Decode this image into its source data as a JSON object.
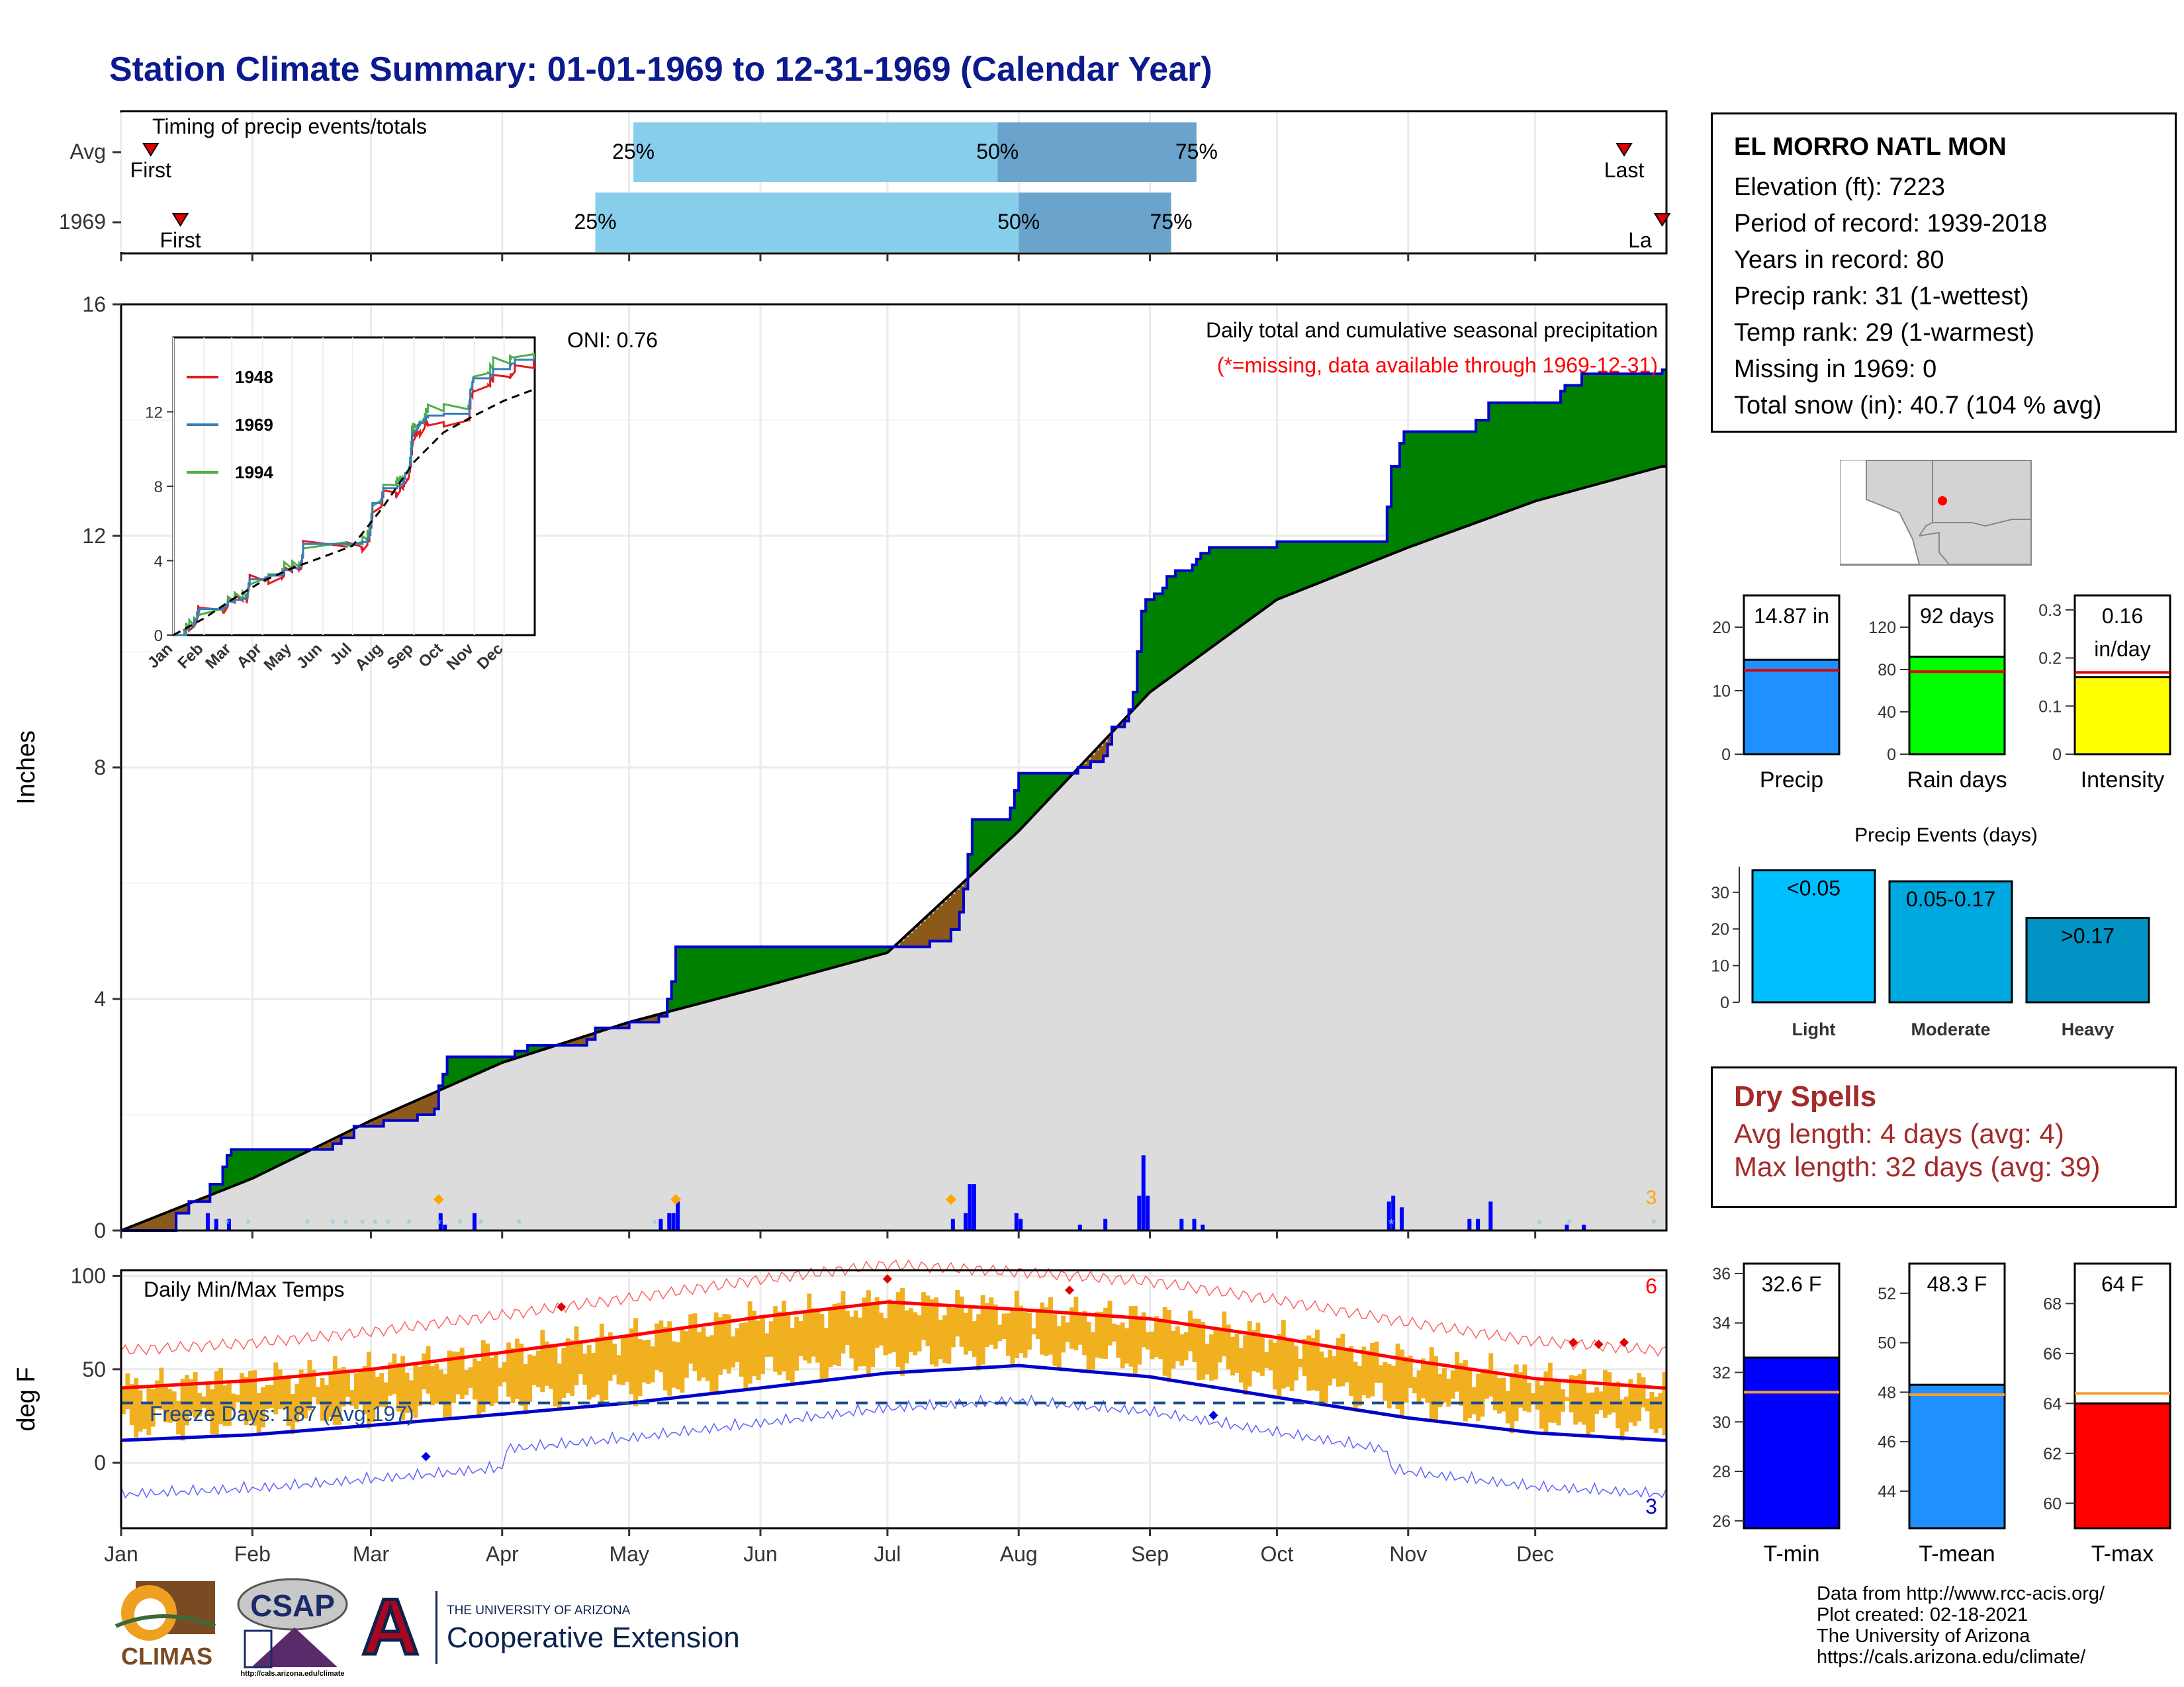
{
  "title": "Station Climate Summary: 01-01-1969 to 12-31-1969 (Calendar Year)",
  "station": {
    "name": "EL MORRO NATL MON",
    "lines": [
      "Elevation (ft): 7223",
      "Period of record: 1939-2018",
      "Years in record: 80",
      "Precip rank: 31 (1-wettest)",
      "Temp rank: 29 (1-warmest)",
      "Missing in 1969: 0",
      "Total snow (in): 40.7 (104 % avg)"
    ]
  },
  "dry_spells": {
    "title": "Dry Spells",
    "avg": "Avg length: 4 days (avg: 4)",
    "max": "Max length: 32 days (avg: 39)"
  },
  "credits": [
    "Data from http://www.rcc-acis.org/",
    "Plot created: 02-18-2021",
    "The University of Arizona",
    "https://cals.arizona.edu/climate/"
  ],
  "logos": {
    "climas": "CLIMAS",
    "csap": "CSAP",
    "csap_url": "http://cals.arizona.edu/climate",
    "ua_line1": "THE UNIVERSITY OF ARIZONA",
    "ua_line2": "Cooperative Extension",
    "ua_letter": "A"
  },
  "colors": {
    "obs_precip": "#008000",
    "deficit": "#8b5a1a",
    "normal": "#dcdcdc",
    "cum_line": "#0000cd",
    "bars": "#0000ff",
    "tmax": "#ff0000",
    "tmin": "#0000cd",
    "temp_bars": "#f0b020",
    "timing_light": "#87ceeb",
    "timing_dark": "#6aa3cc"
  },
  "chart_data": [
    {
      "type": "bar",
      "title": "Timing of precip events/totals",
      "y_categories": [
        "Avg",
        "1969"
      ],
      "rows": [
        {
          "label": "Avg",
          "first": "Jan 8",
          "p25": "May 2",
          "p50": "Jul 27",
          "p75": "Sep 12",
          "last": "Dec 22",
          "labels": {
            "first": "First",
            "p25": "25%",
            "p50": "50%",
            "p75": "75%",
            "last": "Last"
          }
        },
        {
          "label": "1969",
          "first": "Jan 15",
          "p25": "Apr 23",
          "p50": "Aug 1",
          "p75": "Sep 6",
          "last": "Dec 31",
          "labels": {
            "first": "First",
            "p25": "25%",
            "p50": "50%",
            "p75": "75%",
            "last": "La"
          }
        }
      ]
    },
    {
      "type": "area",
      "title": "Daily total and cumulative seasonal precipitation",
      "subtitle": "(*=missing, data available through 1969-12-31)",
      "annotation": "ONI: 0.76",
      "count_label": "3",
      "ylabel": "Inches",
      "ylim": [
        0,
        16
      ],
      "yticks": [
        0,
        4,
        8,
        12,
        16
      ],
      "x_ticks": [
        "Jan",
        "Feb",
        "Mar",
        "Apr",
        "May",
        "Jun",
        "Jul",
        "Aug",
        "Sep",
        "Oct",
        "Nov",
        "Dec"
      ],
      "cumulative_1969": [
        [
          0,
          0
        ],
        [
          11,
          0
        ],
        [
          13,
          0.3
        ],
        [
          16,
          0.5
        ],
        [
          21,
          0.8
        ],
        [
          24,
          1.1
        ],
        [
          25,
          1.3
        ],
        [
          26,
          1.4
        ],
        [
          50,
          1.5
        ],
        [
          52,
          1.6
        ],
        [
          55,
          1.8
        ],
        [
          62,
          1.9
        ],
        [
          70,
          2.0
        ],
        [
          74,
          2.1
        ],
        [
          75,
          2.5
        ],
        [
          76,
          2.7
        ],
        [
          77,
          3.0
        ],
        [
          93,
          3.1
        ],
        [
          96,
          3.2
        ],
        [
          110,
          3.3
        ],
        [
          112,
          3.5
        ],
        [
          120,
          3.6
        ],
        [
          127,
          3.7
        ],
        [
          129,
          4.0
        ],
        [
          130,
          4.3
        ],
        [
          131,
          4.9
        ],
        [
          175,
          4.9
        ],
        [
          190,
          4.9
        ],
        [
          191,
          5.0
        ],
        [
          196,
          5.2
        ],
        [
          198,
          5.5
        ],
        [
          199,
          5.9
        ],
        [
          200,
          6.5
        ],
        [
          201,
          7.1
        ],
        [
          210,
          7.3
        ],
        [
          211,
          7.6
        ],
        [
          212,
          7.9
        ],
        [
          225,
          7.9
        ],
        [
          226,
          8.0
        ],
        [
          229,
          8.1
        ],
        [
          232,
          8.2
        ],
        [
          233,
          8.4
        ],
        [
          234,
          8.7
        ],
        [
          237,
          8.8
        ],
        [
          238,
          9.0
        ],
        [
          239,
          9.3
        ],
        [
          240,
          10.0
        ],
        [
          241,
          10.7
        ],
        [
          242,
          10.9
        ],
        [
          244,
          11.0
        ],
        [
          246,
          11.1
        ],
        [
          247,
          11.3
        ],
        [
          249,
          11.4
        ],
        [
          253,
          11.5
        ],
        [
          254,
          11.6
        ],
        [
          255,
          11.7
        ],
        [
          257,
          11.8
        ],
        [
          273,
          11.9
        ],
        [
          298,
          11.9
        ],
        [
          299,
          12.5
        ],
        [
          300,
          13.2
        ],
        [
          302,
          13.6
        ],
        [
          303,
          13.8
        ],
        [
          318,
          13.8
        ],
        [
          320,
          14.0
        ],
        [
          323,
          14.3
        ],
        [
          340,
          14.5
        ],
        [
          341,
          14.6
        ],
        [
          345,
          14.8
        ],
        [
          364,
          14.87
        ]
      ],
      "normal_cumulative": [
        [
          0,
          0
        ],
        [
          31,
          0.9
        ],
        [
          59,
          1.9
        ],
        [
          90,
          2.9
        ],
        [
          120,
          3.6
        ],
        [
          151,
          4.2
        ],
        [
          181,
          4.8
        ],
        [
          212,
          6.9
        ],
        [
          243,
          9.3
        ],
        [
          273,
          10.9
        ],
        [
          304,
          11.8
        ],
        [
          334,
          12.6
        ],
        [
          364,
          13.2
        ]
      ],
      "daily_bars": [
        [
          20,
          0.3
        ],
        [
          22,
          0.2
        ],
        [
          25,
          0.2
        ],
        [
          75,
          0.3
        ],
        [
          76,
          0.1
        ],
        [
          83,
          0.3
        ],
        [
          127,
          0.2
        ],
        [
          129,
          0.3
        ],
        [
          130,
          0.3
        ],
        [
          131,
          0.5
        ],
        [
          196,
          0.2
        ],
        [
          199,
          0.3
        ],
        [
          200,
          0.8
        ],
        [
          201,
          0.8
        ],
        [
          211,
          0.3
        ],
        [
          212,
          0.2
        ],
        [
          226,
          0.1
        ],
        [
          232,
          0.2
        ],
        [
          240,
          0.6
        ],
        [
          241,
          1.3
        ],
        [
          242,
          0.6
        ],
        [
          250,
          0.2
        ],
        [
          253,
          0.2
        ],
        [
          255,
          0.1
        ],
        [
          299,
          0.5
        ],
        [
          300,
          0.6
        ],
        [
          302,
          0.4
        ],
        [
          318,
          0.2
        ],
        [
          320,
          0.2
        ],
        [
          323,
          0.5
        ],
        [
          341,
          0.1
        ],
        [
          345,
          0.1
        ]
      ],
      "inset": {
        "type": "line",
        "series": [
          {
            "name": "1948"
          },
          {
            "name": "1969"
          },
          {
            "name": "1994"
          }
        ],
        "yticks": [
          0,
          4,
          8,
          12
        ],
        "x_ticks": [
          "Jan",
          "Feb",
          "Mar",
          "Apr",
          "May",
          "Jun",
          "Jul",
          "Aug",
          "Sep",
          "Oct",
          "Nov",
          "Dec"
        ]
      }
    },
    {
      "type": "line",
      "title": "Daily Min/Max Temps",
      "ylabel": "deg F",
      "ylim": [
        -35,
        103
      ],
      "yticks": [
        0,
        50,
        100
      ],
      "freeze_label": "Freeze Days: 187 (Avg:197)",
      "freeze_line": 32,
      "tmax_record_count": "6",
      "tmin_record_count": "3",
      "x_ticks": [
        "Jan",
        "Feb",
        "Mar",
        "Apr",
        "May",
        "Jun",
        "Jul",
        "Aug",
        "Sep",
        "Oct",
        "Nov",
        "Dec"
      ],
      "tmax_normal": [
        [
          0,
          40
        ],
        [
          31,
          44
        ],
        [
          59,
          50
        ],
        [
          90,
          59
        ],
        [
          120,
          68
        ],
        [
          151,
          78
        ],
        [
          181,
          86
        ],
        [
          212,
          82
        ],
        [
          243,
          77
        ],
        [
          273,
          67
        ],
        [
          304,
          55
        ],
        [
          334,
          45
        ],
        [
          364,
          40
        ]
      ],
      "tmin_normal": [
        [
          0,
          12
        ],
        [
          31,
          15
        ],
        [
          59,
          20
        ],
        [
          90,
          26
        ],
        [
          120,
          32
        ],
        [
          151,
          40
        ],
        [
          181,
          48
        ],
        [
          212,
          52
        ],
        [
          243,
          46
        ],
        [
          273,
          35
        ],
        [
          304,
          24
        ],
        [
          334,
          16
        ],
        [
          364,
          12
        ]
      ]
    },
    {
      "type": "bar",
      "title": "",
      "categories": [
        "Precip"
      ],
      "values": [
        14.87
      ],
      "normal": 13.2,
      "label": "14.87 in",
      "ylim": [
        0,
        25
      ],
      "yticks": [
        0,
        10,
        20
      ]
    },
    {
      "type": "bar",
      "title": "",
      "categories": [
        "Rain days"
      ],
      "values": [
        92
      ],
      "normal": 78,
      "label": "92 days",
      "ylim": [
        0,
        150
      ],
      "yticks": [
        0,
        40,
        80,
        120
      ]
    },
    {
      "type": "bar",
      "title": "",
      "categories": [
        "Intensity"
      ],
      "values": [
        0.16
      ],
      "normal": 0.17,
      "label": "0.16 in/day",
      "ylim": [
        0,
        0.33
      ],
      "yticks": [
        0.0,
        0.1,
        0.2,
        0.3
      ]
    },
    {
      "type": "bar",
      "title": "Precip Events (days)",
      "categories": [
        "Light",
        "Moderate",
        "Heavy"
      ],
      "values": [
        36,
        33,
        23
      ],
      "labels": [
        "<0.05",
        "0.05-0.17",
        ">0.17"
      ],
      "ylim": [
        0,
        37
      ],
      "yticks": [
        0,
        10,
        20,
        30
      ]
    },
    {
      "type": "bar",
      "title": "",
      "categories": [
        "T-min"
      ],
      "values": [
        32.6
      ],
      "normal": 31.2,
      "label": "32.6 F",
      "ylim": [
        25.7,
        36.4
      ],
      "yticks": [
        26,
        28,
        30,
        32,
        34,
        36
      ]
    },
    {
      "type": "bar",
      "title": "",
      "categories": [
        "T-mean"
      ],
      "values": [
        48.3
      ],
      "normal": 47.9,
      "label": "48.3 F",
      "ylim": [
        42.5,
        53.2
      ],
      "yticks": [
        44,
        46,
        48,
        50,
        52
      ]
    },
    {
      "type": "bar",
      "title": "",
      "categories": [
        "T-max"
      ],
      "values": [
        64
      ],
      "normal": 64.4,
      "label": "64 F",
      "ylim": [
        59,
        69.6
      ],
      "yticks": [
        60,
        62,
        64,
        66,
        68
      ]
    }
  ]
}
